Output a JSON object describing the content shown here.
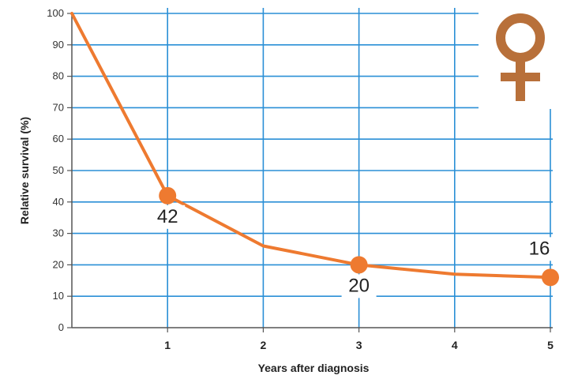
{
  "chart_data": {
    "type": "line",
    "xlabel": "Years after diagnosis",
    "ylabel": "Relative survival (%)",
    "xlim": [
      0,
      5
    ],
    "ylim": [
      0,
      100
    ],
    "x_ticks": [
      "1",
      "2",
      "3",
      "4",
      "5"
    ],
    "y_ticks": [
      "0",
      "10",
      "20",
      "30",
      "40",
      "50",
      "60",
      "70",
      "80",
      "90",
      "100"
    ],
    "grid": true,
    "series": [
      {
        "x": [
          0,
          1,
          2,
          3,
          4,
          5
        ],
        "y": [
          100,
          42,
          26,
          20,
          17,
          16
        ]
      }
    ],
    "data_labels": [
      {
        "x": 1,
        "y": 42,
        "text": "42"
      },
      {
        "x": 3,
        "y": 20,
        "text": "20"
      },
      {
        "x": 5,
        "y": 16,
        "text": "16"
      }
    ],
    "icon": "female-symbol-icon",
    "colors": {
      "line": "#ee7a30",
      "grid": "#2a8fd6",
      "icon": "#b8703a"
    }
  }
}
